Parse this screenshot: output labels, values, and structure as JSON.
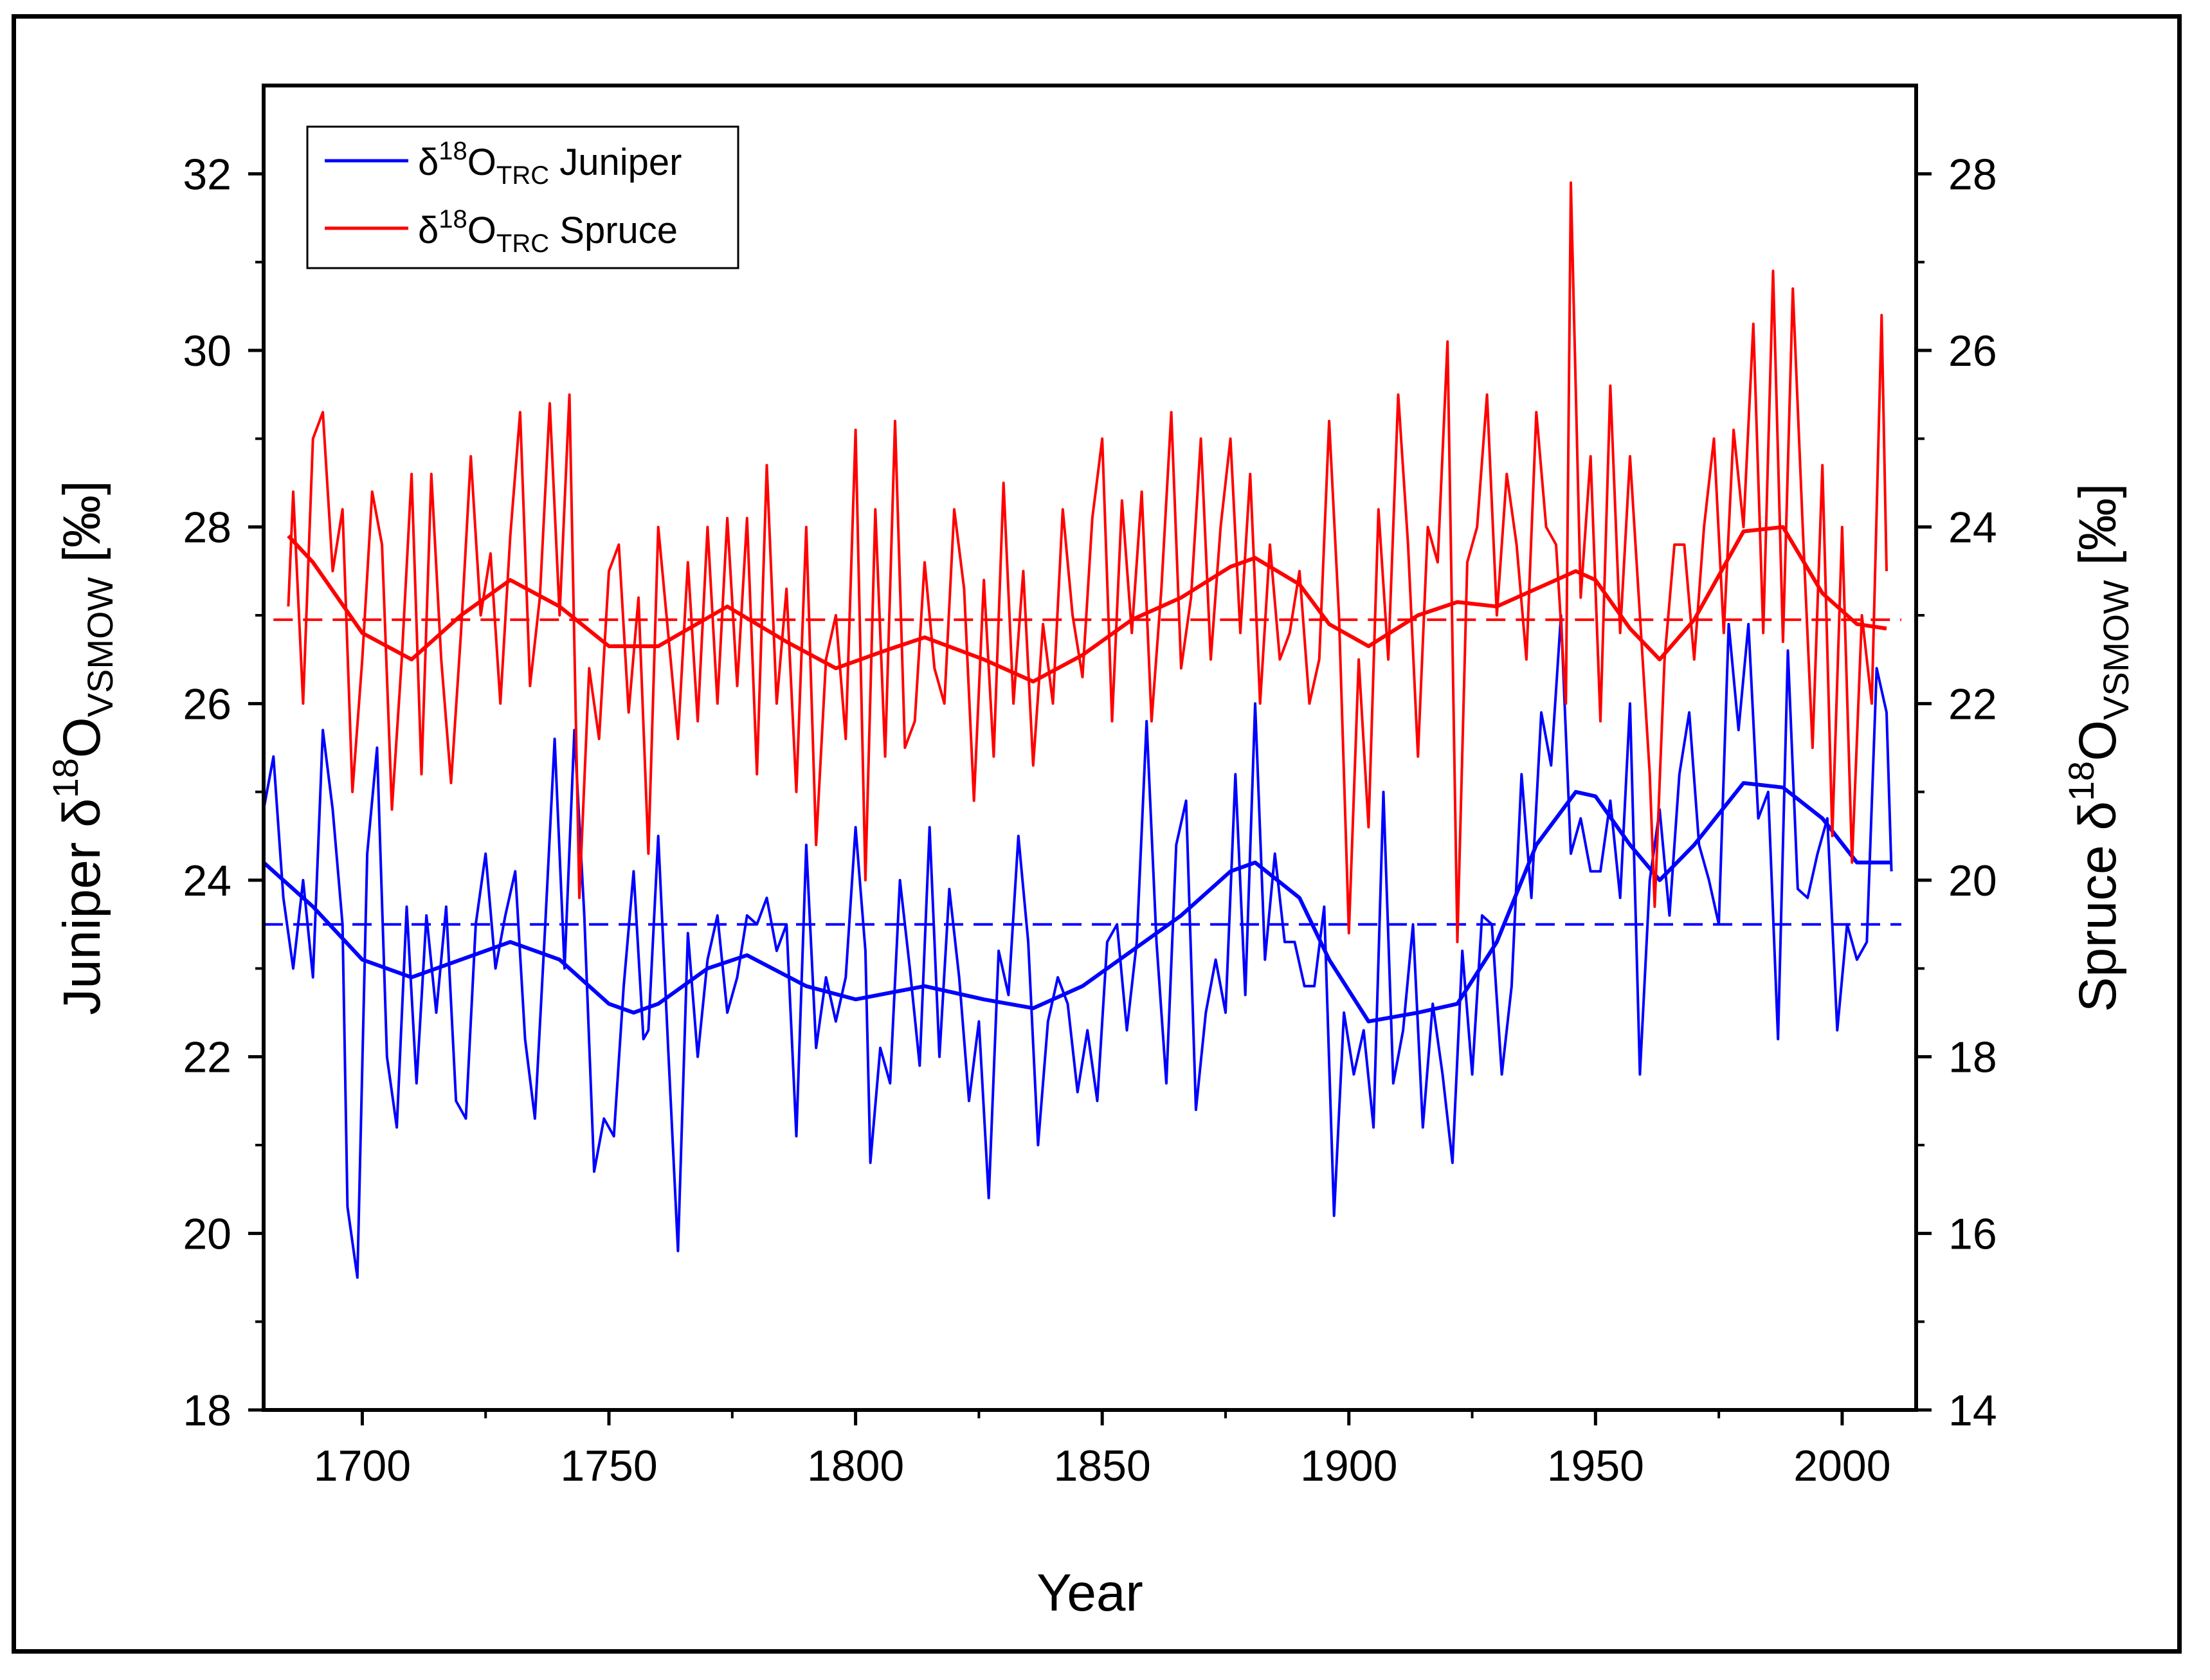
{
  "chart_data": {
    "type": "line",
    "xlabel": "Year",
    "ylabel_left": {
      "prefix": "Juniper δ",
      "sup": "18",
      "main": "O",
      "sub": "VSMOW",
      "suffix": " [‰]"
    },
    "ylabel_right": {
      "prefix": "Spruce δ",
      "sup": "18",
      "main": "O",
      "sub": "VSMOW",
      "suffix": " [‰]"
    },
    "xlim": [
      1680,
      2015
    ],
    "ylim_left": [
      18,
      33
    ],
    "ylim_right": [
      14,
      29
    ],
    "x_ticks": [
      "1700",
      "1750",
      "1800",
      "1850",
      "1900",
      "1950",
      "2000"
    ],
    "y_ticks_left": [
      "18",
      "20",
      "22",
      "24",
      "26",
      "28",
      "30",
      "32"
    ],
    "y_ticks_right": [
      "14",
      "16",
      "18",
      "20",
      "22",
      "24",
      "26",
      "28"
    ],
    "legend": {
      "position": "top-left",
      "entries": [
        {
          "prefix": "δ",
          "sup": "18",
          "main": "O",
          "sub": "TRC",
          "suffix": " Juniper",
          "color": "#0000ff"
        },
        {
          "prefix": "δ",
          "sup": "18",
          "main": "O",
          "sub": "TRC",
          "suffix": " Spruce",
          "color": "#ff0000"
        }
      ]
    },
    "series": [
      {
        "name": "Juniper annual",
        "axis": "left",
        "color": "#0000ff",
        "x": [
          1680,
          1682,
          1684,
          1686,
          1688,
          1690,
          1692,
          1694,
          1696,
          1697,
          1699,
          1701,
          1703,
          1705,
          1707,
          1709,
          1711,
          1713,
          1715,
          1717,
          1719,
          1721,
          1723,
          1725,
          1727,
          1729,
          1731,
          1733,
          1735,
          1737,
          1739,
          1741,
          1743,
          1745,
          1747,
          1749,
          1751,
          1753,
          1755,
          1757,
          1758,
          1760,
          1762,
          1764,
          1766,
          1768,
          1770,
          1772,
          1774,
          1776,
          1778,
          1780,
          1782,
          1784,
          1786,
          1788,
          1790,
          1792,
          1794,
          1796,
          1798,
          1800,
          1802,
          1803,
          1805,
          1807,
          1809,
          1811,
          1813,
          1815,
          1817,
          1819,
          1821,
          1823,
          1825,
          1827,
          1829,
          1831,
          1833,
          1835,
          1837,
          1839,
          1841,
          1843,
          1845,
          1847,
          1849,
          1851,
          1853,
          1855,
          1857,
          1859,
          1861,
          1863,
          1865,
          1867,
          1869,
          1871,
          1873,
          1875,
          1877,
          1879,
          1881,
          1883,
          1885,
          1887,
          1889,
          1891,
          1893,
          1895,
          1897,
          1899,
          1901,
          1903,
          1905,
          1907,
          1909,
          1911,
          1913,
          1915,
          1917,
          1919,
          1921,
          1923,
          1925,
          1927,
          1929,
          1931,
          1933,
          1935,
          1937,
          1939,
          1941,
          1943,
          1945,
          1947,
          1949,
          1951,
          1953,
          1955,
          1957,
          1959,
          1961,
          1963,
          1965,
          1967,
          1969,
          1971,
          1973,
          1975,
          1977,
          1979,
          1981,
          1983,
          1985,
          1987,
          1989,
          1991,
          1993,
          1995,
          1997,
          1999,
          2001,
          2003,
          2005,
          2007,
          2009,
          2010
        ],
        "y": [
          24.8,
          25.4,
          23.8,
          23.0,
          24.0,
          22.9,
          25.7,
          24.8,
          23.5,
          20.3,
          19.5,
          24.3,
          25.5,
          22.0,
          21.2,
          23.7,
          21.7,
          23.6,
          22.5,
          23.7,
          21.5,
          21.3,
          23.5,
          24.3,
          23.0,
          23.6,
          24.1,
          22.2,
          21.3,
          23.4,
          25.6,
          23.0,
          25.7,
          23.6,
          20.7,
          21.3,
          21.1,
          22.8,
          24.1,
          22.2,
          22.3,
          24.5,
          22.1,
          19.8,
          23.4,
          22.0,
          23.1,
          23.6,
          22.5,
          22.9,
          23.6,
          23.5,
          23.8,
          23.2,
          23.5,
          21.1,
          24.4,
          22.1,
          22.9,
          22.4,
          22.9,
          24.6,
          23.2,
          20.8,
          22.1,
          21.7,
          24.0,
          23.0,
          21.9,
          24.6,
          22.0,
          23.9,
          22.9,
          21.5,
          22.4,
          20.4,
          23.2,
          22.7,
          24.5,
          23.3,
          21.0,
          22.4,
          22.9,
          22.6,
          21.6,
          22.3,
          21.5,
          23.3,
          23.5,
          22.3,
          23.3,
          25.8,
          23.3,
          21.7,
          24.4,
          24.9,
          21.4,
          22.5,
          23.1,
          22.5,
          25.2,
          22.7,
          26.0,
          23.1,
          24.3,
          23.3,
          23.3,
          22.8,
          22.8,
          23.7,
          20.2,
          22.5,
          21.8,
          22.3,
          21.2,
          25.0,
          21.7,
          22.3,
          23.5,
          21.2,
          22.6,
          21.8,
          20.8,
          23.2,
          21.8,
          23.6,
          23.5,
          21.8,
          22.8,
          25.2,
          23.8,
          25.9,
          25.3,
          27.0,
          24.3,
          24.7,
          24.1,
          24.1,
          24.9,
          23.8,
          26.0,
          21.8,
          24.0,
          24.8,
          23.6,
          25.2,
          25.9,
          24.4,
          24.0,
          23.5,
          26.9,
          25.7,
          26.9,
          24.7,
          25.0,
          22.2,
          26.6,
          23.9,
          23.8,
          24.3,
          24.7,
          22.3,
          23.5,
          23.1,
          23.3,
          26.4,
          25.9,
          24.1
        ]
      },
      {
        "name": "Juniper smoothed",
        "axis": "left",
        "color": "#0000ff",
        "x": [
          1680,
          1690,
          1700,
          1710,
          1720,
          1730,
          1740,
          1750,
          1755,
          1760,
          1770,
          1778,
          1790,
          1800,
          1814,
          1826,
          1836,
          1846,
          1856,
          1866,
          1876,
          1881,
          1890,
          1896,
          1904,
          1914,
          1922,
          1930,
          1938,
          1946,
          1950,
          1957,
          1963,
          1970,
          1980,
          1988,
          1996,
          2003,
          2010
        ],
        "y": [
          24.2,
          23.7,
          23.1,
          22.9,
          23.1,
          23.3,
          23.1,
          22.6,
          22.5,
          22.6,
          23.0,
          23.15,
          22.8,
          22.65,
          22.8,
          22.65,
          22.55,
          22.8,
          23.2,
          23.6,
          24.1,
          24.2,
          23.8,
          23.1,
          22.4,
          22.5,
          22.6,
          23.3,
          24.4,
          25.0,
          24.95,
          24.4,
          24.0,
          24.4,
          25.1,
          25.05,
          24.7,
          24.2,
          24.2
        ]
      },
      {
        "name": "Juniper mean",
        "axis": "left",
        "color": "#0000ff",
        "dashed": true,
        "x": [
          1680,
          2012
        ],
        "y": [
          23.5,
          23.5
        ]
      },
      {
        "name": "Spruce annual",
        "axis": "right",
        "color": "#ff0000",
        "x": [
          1685,
          1686,
          1688,
          1690,
          1692,
          1694,
          1696,
          1698,
          1700,
          1702,
          1704,
          1706,
          1708,
          1710,
          1712,
          1714,
          1716,
          1718,
          1720,
          1722,
          1724,
          1726,
          1728,
          1730,
          1732,
          1734,
          1736,
          1738,
          1740,
          1742,
          1744,
          1746,
          1748,
          1750,
          1752,
          1754,
          1756,
          1758,
          1760,
          1762,
          1764,
          1766,
          1768,
          1770,
          1772,
          1774,
          1776,
          1778,
          1780,
          1782,
          1784,
          1786,
          1788,
          1790,
          1792,
          1794,
          1796,
          1798,
          1800,
          1802,
          1804,
          1806,
          1808,
          1810,
          1812,
          1814,
          1816,
          1818,
          1820,
          1822,
          1824,
          1826,
          1828,
          1830,
          1832,
          1834,
          1836,
          1838,
          1840,
          1842,
          1844,
          1846,
          1848,
          1850,
          1852,
          1854,
          1856,
          1858,
          1860,
          1862,
          1864,
          1866,
          1868,
          1870,
          1872,
          1874,
          1876,
          1878,
          1880,
          1882,
          1884,
          1886,
          1888,
          1890,
          1892,
          1894,
          1896,
          1898,
          1900,
          1902,
          1904,
          1906,
          1908,
          1910,
          1912,
          1914,
          1916,
          1918,
          1920,
          1922,
          1924,
          1926,
          1928,
          1930,
          1932,
          1934,
          1936,
          1938,
          1940,
          1942,
          1944,
          1945,
          1947,
          1949,
          1951,
          1953,
          1955,
          1957,
          1959,
          1961,
          1962,
          1964,
          1966,
          1968,
          1970,
          1972,
          1974,
          1976,
          1978,
          1980,
          1982,
          1984,
          1986,
          1988,
          1990,
          1992,
          1994,
          1996,
          1998,
          2000,
          2002,
          2004,
          2006,
          2008,
          2009
        ],
        "y": [
          23.1,
          24.4,
          22.0,
          25.0,
          25.3,
          23.5,
          24.2,
          21.0,
          22.5,
          24.4,
          23.8,
          20.8,
          22.5,
          24.6,
          21.2,
          24.6,
          22.5,
          21.1,
          22.8,
          24.8,
          23.0,
          23.7,
          22.0,
          23.9,
          25.3,
          22.2,
          23.2,
          25.4,
          23.0,
          25.5,
          19.8,
          22.4,
          21.6,
          23.5,
          23.8,
          21.9,
          23.2,
          20.3,
          24.0,
          22.8,
          21.6,
          23.6,
          21.8,
          24.0,
          22.0,
          24.1,
          22.2,
          24.1,
          21.2,
          24.7,
          22.0,
          23.3,
          21.0,
          24.0,
          20.4,
          22.5,
          23.0,
          21.6,
          25.1,
          20.0,
          24.2,
          21.4,
          25.2,
          21.5,
          21.8,
          23.6,
          22.4,
          22.0,
          24.2,
          23.3,
          20.9,
          23.4,
          21.4,
          24.5,
          22.0,
          23.5,
          21.3,
          22.9,
          22.0,
          24.2,
          23.0,
          22.3,
          24.1,
          25.0,
          21.8,
          24.3,
          22.8,
          24.4,
          21.8,
          23.3,
          25.3,
          22.4,
          23.2,
          25.0,
          22.5,
          24.0,
          25.0,
          22.8,
          24.6,
          22.0,
          23.8,
          22.5,
          22.8,
          23.5,
          22.0,
          22.5,
          25.2,
          23.0,
          19.4,
          22.5,
          20.6,
          24.2,
          22.5,
          25.5,
          23.8,
          21.4,
          24.0,
          23.6,
          26.1,
          19.3,
          23.6,
          24.0,
          25.5,
          23.0,
          24.6,
          23.8,
          22.5,
          25.3,
          24.0,
          23.8,
          22.0,
          27.9,
          23.2,
          24.8,
          21.8,
          25.6,
          22.8,
          24.8,
          23.0,
          21.2,
          19.7,
          22.5,
          23.8,
          23.8,
          22.5,
          24.0,
          25.0,
          22.8,
          25.1,
          24.0,
          26.3,
          22.8,
          26.9,
          22.7,
          26.7,
          24.0,
          21.5,
          24.7,
          20.5,
          24.0,
          20.2,
          23.0,
          22.0,
          26.4,
          23.5
        ]
      },
      {
        "name": "Spruce smoothed",
        "axis": "right",
        "color": "#ff0000",
        "x": [
          1685,
          1690,
          1700,
          1710,
          1720,
          1730,
          1740,
          1750,
          1760,
          1774,
          1786,
          1796,
          1806,
          1814,
          1826,
          1836,
          1846,
          1856,
          1866,
          1876,
          1881,
          1890,
          1896,
          1904,
          1914,
          1922,
          1930,
          1938,
          1946,
          1950,
          1957,
          1963,
          1970,
          1980,
          1988,
          1996,
          2003,
          2009
        ],
        "y": [
          23.9,
          23.6,
          22.8,
          22.5,
          23.0,
          23.4,
          23.1,
          22.65,
          22.65,
          23.1,
          22.7,
          22.4,
          22.6,
          22.75,
          22.5,
          22.25,
          22.55,
          22.95,
          23.2,
          23.55,
          23.65,
          23.35,
          22.9,
          22.65,
          23.0,
          23.15,
          23.1,
          23.3,
          23.5,
          23.4,
          22.85,
          22.5,
          22.95,
          23.95,
          24.0,
          23.25,
          22.9,
          22.85
        ]
      },
      {
        "name": "Spruce mean",
        "axis": "right",
        "color": "#ff0000",
        "dashed": true,
        "x": [
          1682,
          2012
        ],
        "y": [
          22.95,
          22.95
        ]
      }
    ]
  }
}
